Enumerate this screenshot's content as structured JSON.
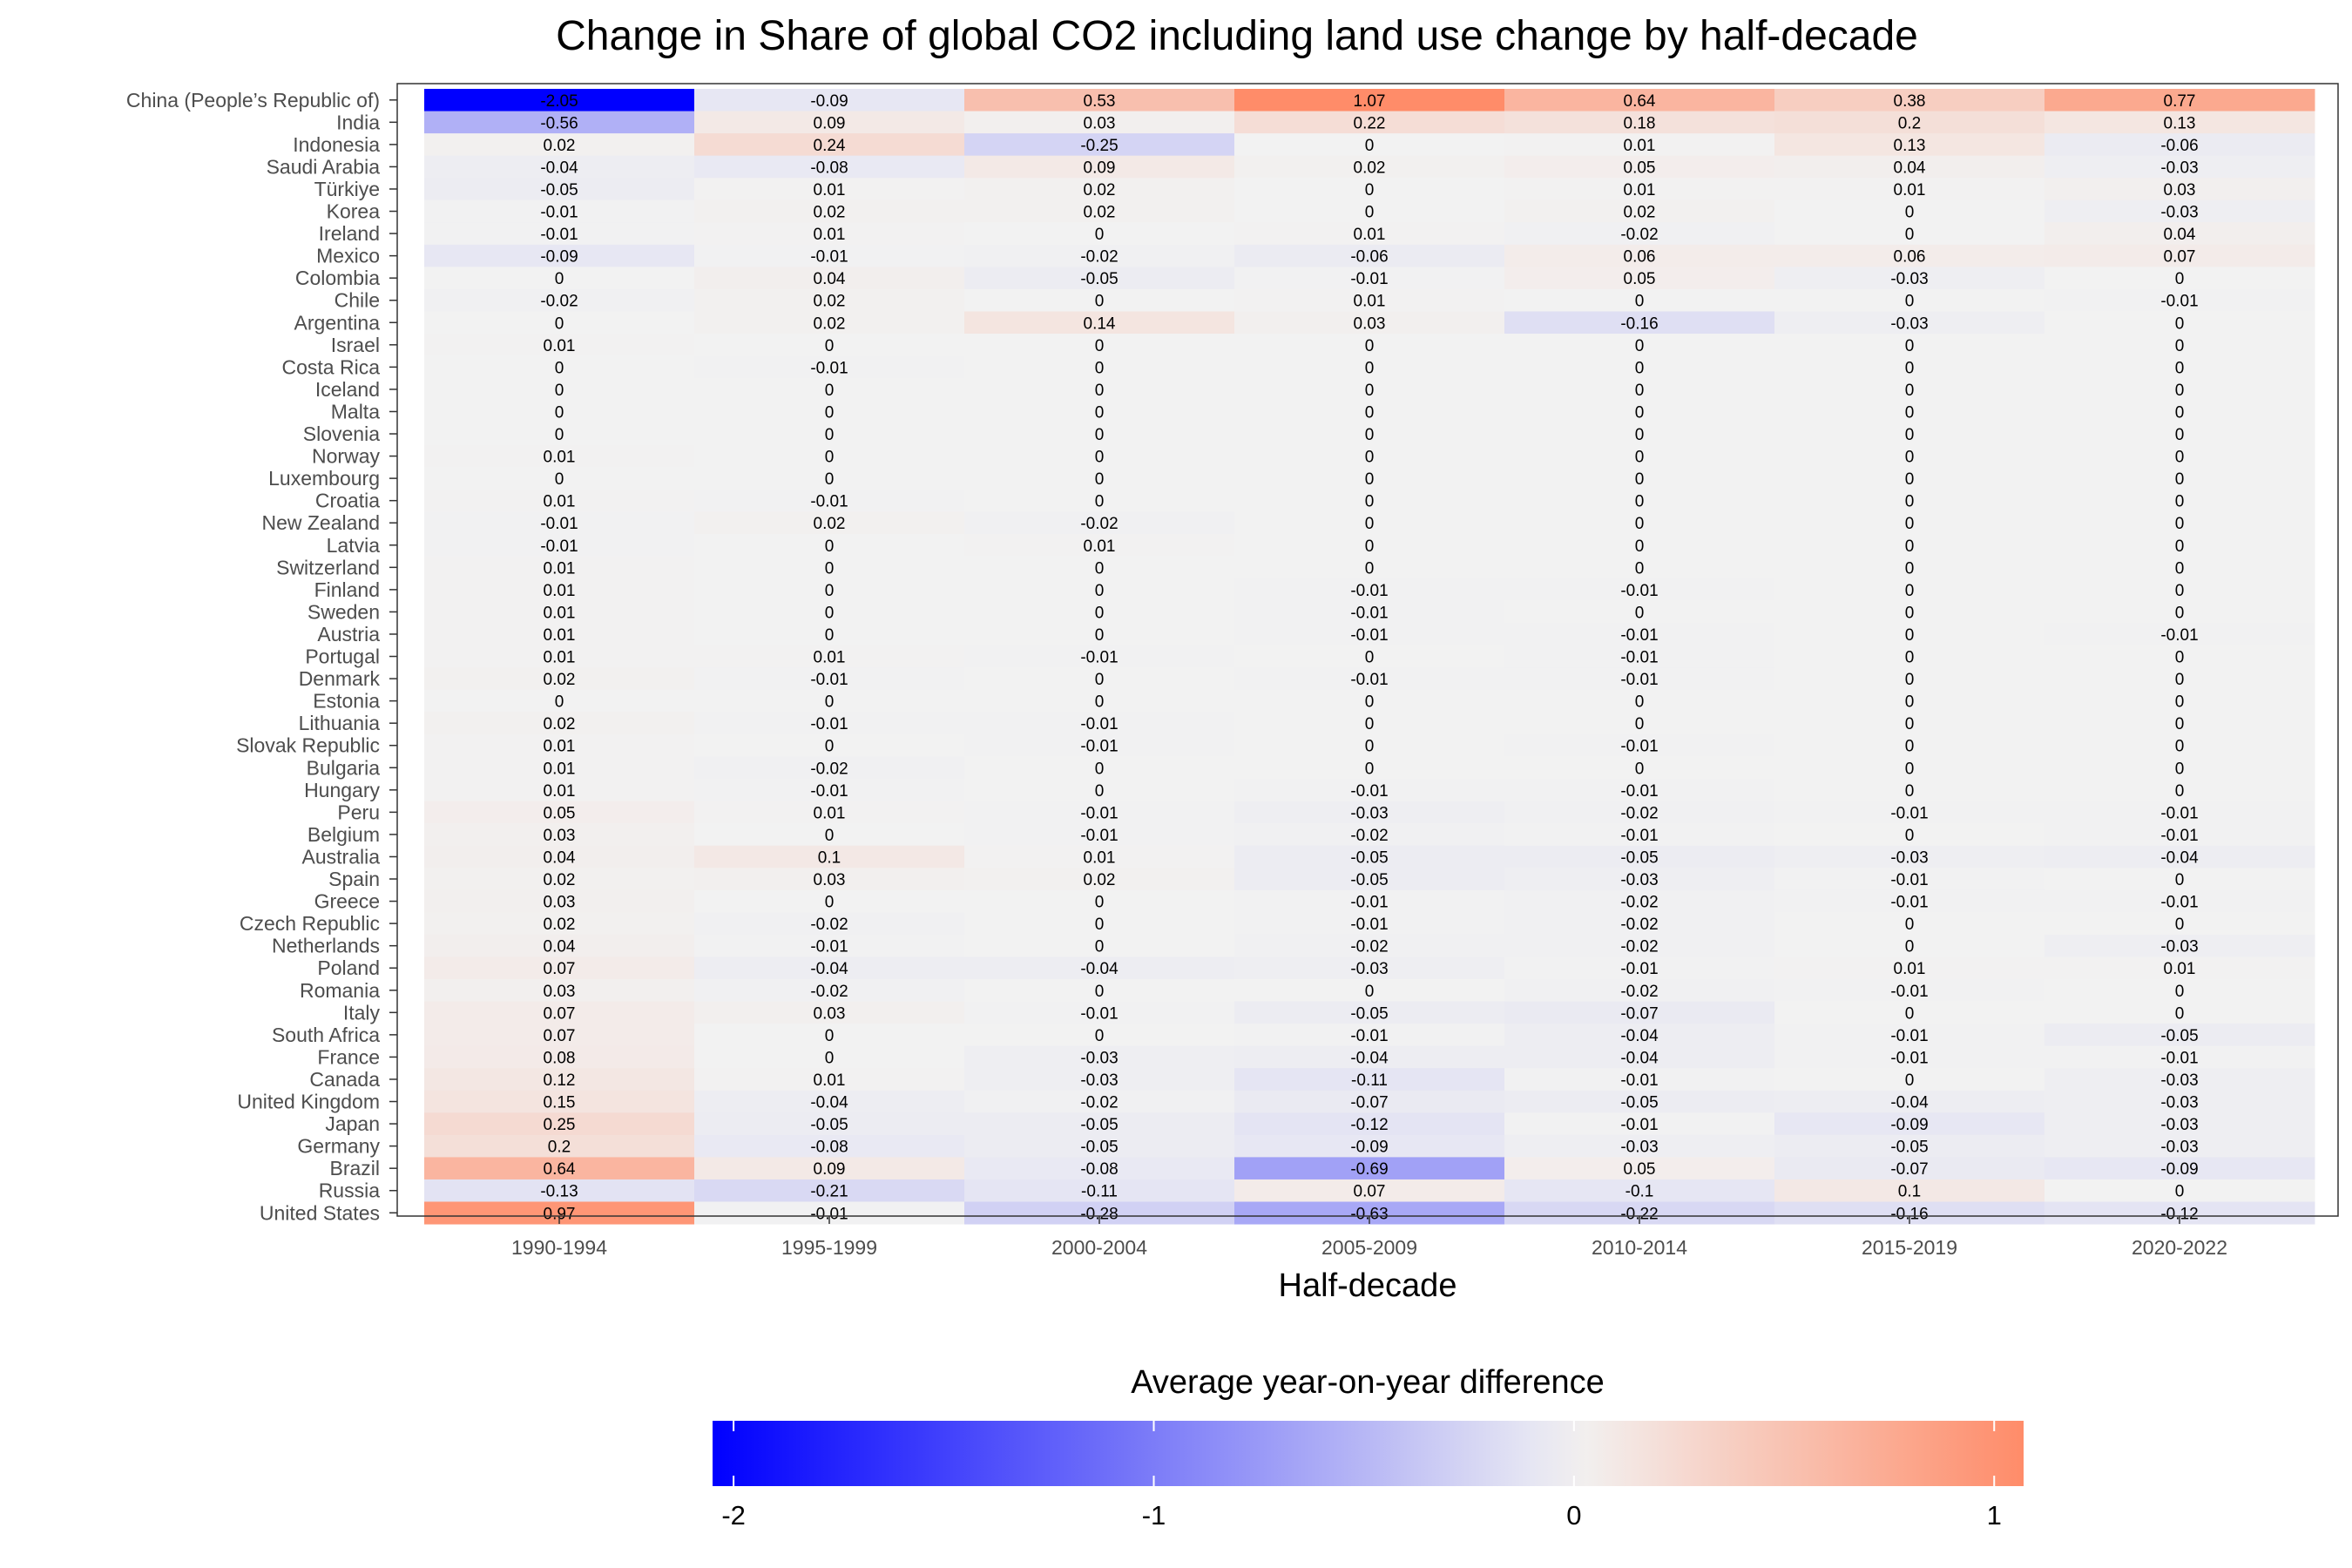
{
  "chart_data": {
    "type": "heatmap",
    "title": "Change in Share of global CO2 including land use change by half-decade",
    "xlabel": "Half-decade",
    "ylabel": "",
    "legend": {
      "title": "Average year-on-year difference",
      "position": "bottom",
      "ticks": [
        "-2",
        "-1",
        "0",
        "1"
      ],
      "range": [
        -2.05,
        1.07
      ]
    },
    "colors": {
      "low": "#0000FF",
      "mid": "#F2F2F2",
      "high": "#FF8C69"
    },
    "grid": false,
    "columns": [
      "1990-1994",
      "1995-1999",
      "2000-2004",
      "2005-2009",
      "2010-2014",
      "2015-2019",
      "2020-2022"
    ],
    "rows": [
      {
        "country": "China (People’s Republic of)",
        "values": [
          "-2.05",
          "-0.09",
          "0.53",
          "1.07",
          "0.64",
          "0.38",
          "0.77"
        ]
      },
      {
        "country": "India",
        "values": [
          "-0.56",
          "0.09",
          "0.03",
          "0.22",
          "0.18",
          "0.2",
          "0.13"
        ]
      },
      {
        "country": "Indonesia",
        "values": [
          "0.02",
          "0.24",
          "-0.25",
          "0",
          "0.01",
          "0.13",
          "-0.06"
        ]
      },
      {
        "country": "Saudi Arabia",
        "values": [
          "-0.04",
          "-0.08",
          "0.09",
          "0.02",
          "0.05",
          "0.04",
          "-0.03"
        ]
      },
      {
        "country": "Türkiye",
        "values": [
          "-0.05",
          "0.01",
          "0.02",
          "0",
          "0.01",
          "0.01",
          "0.03"
        ]
      },
      {
        "country": "Korea",
        "values": [
          "-0.01",
          "0.02",
          "0.02",
          "0",
          "0.02",
          "0",
          "-0.03"
        ]
      },
      {
        "country": "Ireland",
        "values": [
          "-0.01",
          "0.01",
          "0",
          "0.01",
          "-0.02",
          "0",
          "0.04"
        ]
      },
      {
        "country": "Mexico",
        "values": [
          "-0.09",
          "-0.01",
          "-0.02",
          "-0.06",
          "0.06",
          "0.06",
          "0.07"
        ]
      },
      {
        "country": "Colombia",
        "values": [
          "0",
          "0.04",
          "-0.05",
          "-0.01",
          "0.05",
          "-0.03",
          "0"
        ]
      },
      {
        "country": "Chile",
        "values": [
          "-0.02",
          "0.02",
          "0",
          "0.01",
          "0",
          "0",
          "-0.01"
        ]
      },
      {
        "country": "Argentina",
        "values": [
          "0",
          "0.02",
          "0.14",
          "0.03",
          "-0.16",
          "-0.03",
          "0"
        ]
      },
      {
        "country": "Israel",
        "values": [
          "0.01",
          "0",
          "0",
          "0",
          "0",
          "0",
          "0"
        ]
      },
      {
        "country": "Costa Rica",
        "values": [
          "0",
          "-0.01",
          "0",
          "0",
          "0",
          "0",
          "0"
        ]
      },
      {
        "country": "Iceland",
        "values": [
          "0",
          "0",
          "0",
          "0",
          "0",
          "0",
          "0"
        ]
      },
      {
        "country": "Malta",
        "values": [
          "0",
          "0",
          "0",
          "0",
          "0",
          "0",
          "0"
        ]
      },
      {
        "country": "Slovenia",
        "values": [
          "0",
          "0",
          "0",
          "0",
          "0",
          "0",
          "0"
        ]
      },
      {
        "country": "Norway",
        "values": [
          "0.01",
          "0",
          "0",
          "0",
          "0",
          "0",
          "0"
        ]
      },
      {
        "country": "Luxembourg",
        "values": [
          "0",
          "0",
          "0",
          "0",
          "0",
          "0",
          "0"
        ]
      },
      {
        "country": "Croatia",
        "values": [
          "0.01",
          "-0.01",
          "0",
          "0",
          "0",
          "0",
          "0"
        ]
      },
      {
        "country": "New Zealand",
        "values": [
          "-0.01",
          "0.02",
          "-0.02",
          "0",
          "0",
          "0",
          "0"
        ]
      },
      {
        "country": "Latvia",
        "values": [
          "-0.01",
          "0",
          "0.01",
          "0",
          "0",
          "0",
          "0"
        ]
      },
      {
        "country": "Switzerland",
        "values": [
          "0.01",
          "0",
          "0",
          "0",
          "0",
          "0",
          "0"
        ]
      },
      {
        "country": "Finland",
        "values": [
          "0.01",
          "0",
          "0",
          "-0.01",
          "-0.01",
          "0",
          "0"
        ]
      },
      {
        "country": "Sweden",
        "values": [
          "0.01",
          "0",
          "0",
          "-0.01",
          "0",
          "0",
          "0"
        ]
      },
      {
        "country": "Austria",
        "values": [
          "0.01",
          "0",
          "0",
          "-0.01",
          "-0.01",
          "0",
          "-0.01"
        ]
      },
      {
        "country": "Portugal",
        "values": [
          "0.01",
          "0.01",
          "-0.01",
          "0",
          "-0.01",
          "0",
          "0"
        ]
      },
      {
        "country": "Denmark",
        "values": [
          "0.02",
          "-0.01",
          "0",
          "-0.01",
          "-0.01",
          "0",
          "0"
        ]
      },
      {
        "country": "Estonia",
        "values": [
          "0",
          "0",
          "0",
          "0",
          "0",
          "0",
          "0"
        ]
      },
      {
        "country": "Lithuania",
        "values": [
          "0.02",
          "-0.01",
          "-0.01",
          "0",
          "0",
          "0",
          "0"
        ]
      },
      {
        "country": "Slovak Republic",
        "values": [
          "0.01",
          "0",
          "-0.01",
          "0",
          "-0.01",
          "0",
          "0"
        ]
      },
      {
        "country": "Bulgaria",
        "values": [
          "0.01",
          "-0.02",
          "0",
          "0",
          "0",
          "0",
          "0"
        ]
      },
      {
        "country": "Hungary",
        "values": [
          "0.01",
          "-0.01",
          "0",
          "-0.01",
          "-0.01",
          "0",
          "0"
        ]
      },
      {
        "country": "Peru",
        "values": [
          "0.05",
          "0.01",
          "-0.01",
          "-0.03",
          "-0.02",
          "-0.01",
          "-0.01"
        ]
      },
      {
        "country": "Belgium",
        "values": [
          "0.03",
          "0",
          "-0.01",
          "-0.02",
          "-0.01",
          "0",
          "-0.01"
        ]
      },
      {
        "country": "Australia",
        "values": [
          "0.04",
          "0.1",
          "0.01",
          "-0.05",
          "-0.05",
          "-0.03",
          "-0.04"
        ]
      },
      {
        "country": "Spain",
        "values": [
          "0.02",
          "0.03",
          "0.02",
          "-0.05",
          "-0.03",
          "-0.01",
          "0"
        ]
      },
      {
        "country": "Greece",
        "values": [
          "0.03",
          "0",
          "0",
          "-0.01",
          "-0.02",
          "-0.01",
          "-0.01"
        ]
      },
      {
        "country": "Czech Republic",
        "values": [
          "0.02",
          "-0.02",
          "0",
          "-0.01",
          "-0.02",
          "0",
          "0"
        ]
      },
      {
        "country": "Netherlands",
        "values": [
          "0.04",
          "-0.01",
          "0",
          "-0.02",
          "-0.02",
          "0",
          "-0.03"
        ]
      },
      {
        "country": "Poland",
        "values": [
          "0.07",
          "-0.04",
          "-0.04",
          "-0.03",
          "-0.01",
          "0.01",
          "0.01"
        ]
      },
      {
        "country": "Romania",
        "values": [
          "0.03",
          "-0.02",
          "0",
          "0",
          "-0.02",
          "-0.01",
          "0"
        ]
      },
      {
        "country": "Italy",
        "values": [
          "0.07",
          "0.03",
          "-0.01",
          "-0.05",
          "-0.07",
          "0",
          "0"
        ]
      },
      {
        "country": "South Africa",
        "values": [
          "0.07",
          "0",
          "0",
          "-0.01",
          "-0.04",
          "-0.01",
          "-0.05"
        ]
      },
      {
        "country": "France",
        "values": [
          "0.08",
          "0",
          "-0.03",
          "-0.04",
          "-0.04",
          "-0.01",
          "-0.01"
        ]
      },
      {
        "country": "Canada",
        "values": [
          "0.12",
          "0.01",
          "-0.03",
          "-0.11",
          "-0.01",
          "0",
          "-0.03"
        ]
      },
      {
        "country": "United Kingdom",
        "values": [
          "0.15",
          "-0.04",
          "-0.02",
          "-0.07",
          "-0.05",
          "-0.04",
          "-0.03"
        ]
      },
      {
        "country": "Japan",
        "values": [
          "0.25",
          "-0.05",
          "-0.05",
          "-0.12",
          "-0.01",
          "-0.09",
          "-0.03"
        ]
      },
      {
        "country": "Germany",
        "values": [
          "0.2",
          "-0.08",
          "-0.05",
          "-0.09",
          "-0.03",
          "-0.05",
          "-0.03"
        ]
      },
      {
        "country": "Brazil",
        "values": [
          "0.64",
          "0.09",
          "-0.08",
          "-0.69",
          "0.05",
          "-0.07",
          "-0.09"
        ]
      },
      {
        "country": "Russia",
        "values": [
          "-0.13",
          "-0.21",
          "-0.11",
          "0.07",
          "-0.1",
          "0.1",
          "0"
        ]
      },
      {
        "country": "United States",
        "values": [
          "0.97",
          "-0.01",
          "-0.28",
          "-0.63",
          "-0.22",
          "-0.16",
          "-0.12"
        ]
      }
    ]
  }
}
